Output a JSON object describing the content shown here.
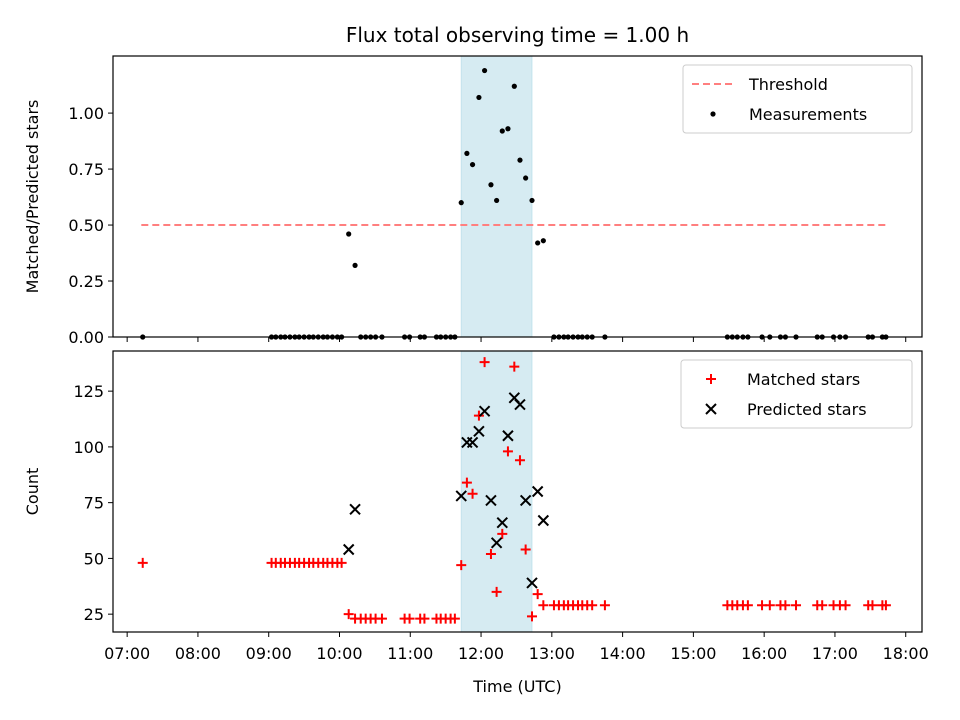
{
  "title": "Flux total observing time = 1.00 h",
  "chart_data": [
    {
      "type": "scatter",
      "ylabel": "Matched/Predicted stars",
      "xlabel": "",
      "xlim": [
        6.8,
        18.23
      ],
      "ylim": [
        0,
        1.255
      ],
      "yticks": [
        0.0,
        0.25,
        0.5,
        0.75,
        1.0
      ],
      "ytick_labels": [
        "0.00",
        "0.25",
        "0.50",
        "0.75",
        "1.00"
      ],
      "legend_position": "top-right",
      "highlight_band": {
        "x0": 11.72,
        "x1": 12.72,
        "color": "#add8e6"
      },
      "threshold": {
        "name": "Threshold",
        "y": 0.5,
        "x_range": [
          7.2,
          17.72
        ],
        "color": "#ff7f7f"
      },
      "series": [
        {
          "name": "Measurements",
          "color": "#000000",
          "points": [
            [
              7.22,
              0.0
            ],
            [
              9.04,
              0.0
            ],
            [
              9.1,
              0.0
            ],
            [
              9.17,
              0.0
            ],
            [
              9.23,
              0.0
            ],
            [
              9.3,
              0.0
            ],
            [
              9.37,
              0.0
            ],
            [
              9.43,
              0.0
            ],
            [
              9.5,
              0.0
            ],
            [
              9.57,
              0.0
            ],
            [
              9.63,
              0.0
            ],
            [
              9.7,
              0.0
            ],
            [
              9.77,
              0.0
            ],
            [
              9.83,
              0.0
            ],
            [
              9.9,
              0.0
            ],
            [
              9.97,
              0.0
            ],
            [
              10.03,
              0.0
            ],
            [
              10.13,
              0.46
            ],
            [
              10.22,
              0.32
            ],
            [
              10.3,
              0.0
            ],
            [
              10.37,
              0.0
            ],
            [
              10.44,
              0.0
            ],
            [
              10.51,
              0.0
            ],
            [
              10.6,
              0.0
            ],
            [
              10.92,
              0.0
            ],
            [
              10.99,
              0.0
            ],
            [
              11.14,
              0.0
            ],
            [
              11.2,
              0.0
            ],
            [
              11.37,
              0.0
            ],
            [
              11.43,
              0.0
            ],
            [
              11.5,
              0.0
            ],
            [
              11.57,
              0.0
            ],
            [
              11.63,
              0.0
            ],
            [
              11.72,
              0.6
            ],
            [
              11.8,
              0.82
            ],
            [
              11.88,
              0.77
            ],
            [
              11.97,
              1.07
            ],
            [
              12.05,
              1.19
            ],
            [
              12.14,
              0.68
            ],
            [
              12.22,
              0.61
            ],
            [
              12.3,
              0.92
            ],
            [
              12.38,
              0.93
            ],
            [
              12.47,
              1.12
            ],
            [
              12.55,
              0.79
            ],
            [
              12.63,
              0.71
            ],
            [
              12.72,
              0.61
            ],
            [
              12.8,
              0.42
            ],
            [
              12.88,
              0.43
            ],
            [
              13.03,
              0.0
            ],
            [
              13.1,
              0.0
            ],
            [
              13.17,
              0.0
            ],
            [
              13.23,
              0.0
            ],
            [
              13.3,
              0.0
            ],
            [
              13.37,
              0.0
            ],
            [
              13.43,
              0.0
            ],
            [
              13.5,
              0.0
            ],
            [
              13.57,
              0.0
            ],
            [
              13.75,
              0.0
            ],
            [
              15.48,
              0.0
            ],
            [
              15.55,
              0.0
            ],
            [
              15.62,
              0.0
            ],
            [
              15.7,
              0.0
            ],
            [
              15.77,
              0.0
            ],
            [
              15.97,
              0.0
            ],
            [
              16.08,
              0.0
            ],
            [
              16.23,
              0.0
            ],
            [
              16.3,
              0.0
            ],
            [
              16.45,
              0.0
            ],
            [
              16.75,
              0.0
            ],
            [
              16.82,
              0.0
            ],
            [
              16.98,
              0.0
            ],
            [
              17.07,
              0.0
            ],
            [
              17.15,
              0.0
            ],
            [
              17.47,
              0.0
            ],
            [
              17.53,
              0.0
            ],
            [
              17.67,
              0.0
            ],
            [
              17.72,
              0.0
            ]
          ]
        }
      ]
    },
    {
      "type": "scatter",
      "ylabel": "Count",
      "xlabel": "Time (UTC)",
      "xlim": [
        6.8,
        18.23
      ],
      "ylim": [
        17,
        143
      ],
      "yticks": [
        25,
        50,
        75,
        100,
        125
      ],
      "ytick_labels": [
        "25",
        "50",
        "75",
        "100",
        "125"
      ],
      "xticks": [
        7,
        8,
        9,
        10,
        11,
        12,
        13,
        14,
        15,
        16,
        17,
        18
      ],
      "xtick_labels": [
        "07:00",
        "08:00",
        "09:00",
        "10:00",
        "11:00",
        "12:00",
        "13:00",
        "14:00",
        "15:00",
        "16:00",
        "17:00",
        "18:00"
      ],
      "legend_position": "top-right",
      "highlight_band": {
        "x0": 11.72,
        "x1": 12.72,
        "color": "#add8e6"
      },
      "series": [
        {
          "name": "Matched stars",
          "marker": "plus",
          "color": "#ff0000",
          "points": [
            [
              7.22,
              48
            ],
            [
              9.04,
              48
            ],
            [
              9.1,
              48
            ],
            [
              9.17,
              48
            ],
            [
              9.23,
              48
            ],
            [
              9.3,
              48
            ],
            [
              9.37,
              48
            ],
            [
              9.43,
              48
            ],
            [
              9.5,
              48
            ],
            [
              9.57,
              48
            ],
            [
              9.63,
              48
            ],
            [
              9.7,
              48
            ],
            [
              9.77,
              48
            ],
            [
              9.83,
              48
            ],
            [
              9.9,
              48
            ],
            [
              9.97,
              48
            ],
            [
              10.03,
              48
            ],
            [
              10.13,
              25
            ],
            [
              10.22,
              23
            ],
            [
              10.3,
              23
            ],
            [
              10.37,
              23
            ],
            [
              10.44,
              23
            ],
            [
              10.51,
              23
            ],
            [
              10.6,
              23
            ],
            [
              10.92,
              23
            ],
            [
              10.99,
              23
            ],
            [
              11.14,
              23
            ],
            [
              11.2,
              23
            ],
            [
              11.37,
              23
            ],
            [
              11.43,
              23
            ],
            [
              11.5,
              23
            ],
            [
              11.57,
              23
            ],
            [
              11.63,
              23
            ],
            [
              11.72,
              47
            ],
            [
              11.8,
              84
            ],
            [
              11.88,
              79
            ],
            [
              11.97,
              114
            ],
            [
              12.05,
              138
            ],
            [
              12.14,
              52
            ],
            [
              12.22,
              35
            ],
            [
              12.3,
              61
            ],
            [
              12.38,
              98
            ],
            [
              12.47,
              136
            ],
            [
              12.55,
              94
            ],
            [
              12.63,
              54
            ],
            [
              12.72,
              24
            ],
            [
              12.8,
              34
            ],
            [
              12.88,
              29
            ],
            [
              13.03,
              29
            ],
            [
              13.1,
              29
            ],
            [
              13.17,
              29
            ],
            [
              13.23,
              29
            ],
            [
              13.3,
              29
            ],
            [
              13.37,
              29
            ],
            [
              13.43,
              29
            ],
            [
              13.5,
              29
            ],
            [
              13.57,
              29
            ],
            [
              13.75,
              29
            ],
            [
              15.48,
              29
            ],
            [
              15.55,
              29
            ],
            [
              15.62,
              29
            ],
            [
              15.7,
              29
            ],
            [
              15.77,
              29
            ],
            [
              15.97,
              29
            ],
            [
              16.08,
              29
            ],
            [
              16.23,
              29
            ],
            [
              16.3,
              29
            ],
            [
              16.45,
              29
            ],
            [
              16.75,
              29
            ],
            [
              16.82,
              29
            ],
            [
              16.98,
              29
            ],
            [
              17.07,
              29
            ],
            [
              17.15,
              29
            ],
            [
              17.47,
              29
            ],
            [
              17.53,
              29
            ],
            [
              17.67,
              29
            ],
            [
              17.72,
              29
            ]
          ]
        },
        {
          "name": "Predicted stars",
          "marker": "x",
          "color": "#000000",
          "points": [
            [
              10.13,
              54
            ],
            [
              10.22,
              72
            ],
            [
              11.72,
              78
            ],
            [
              11.8,
              102
            ],
            [
              11.88,
              102
            ],
            [
              11.97,
              107
            ],
            [
              12.05,
              116
            ],
            [
              12.14,
              76
            ],
            [
              12.22,
              57
            ],
            [
              12.3,
              66
            ],
            [
              12.38,
              105
            ],
            [
              12.47,
              122
            ],
            [
              12.55,
              119
            ],
            [
              12.63,
              76
            ],
            [
              12.72,
              39
            ],
            [
              12.8,
              80
            ],
            [
              12.88,
              67
            ]
          ]
        }
      ]
    }
  ]
}
